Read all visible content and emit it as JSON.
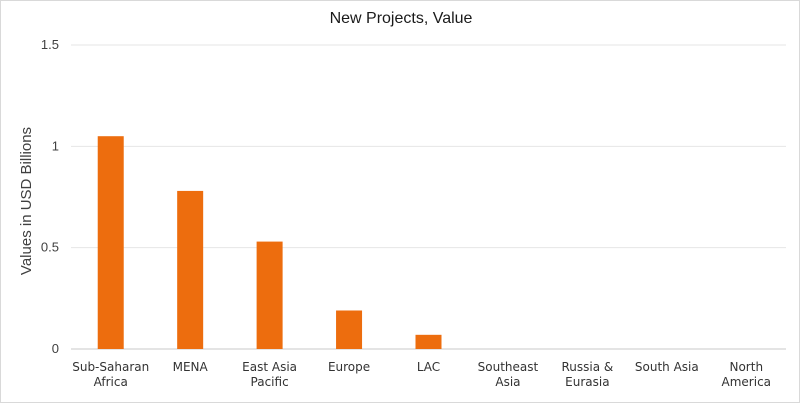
{
  "chart_data": {
    "type": "bar",
    "title": "New Projects, Value",
    "ylabel": "Values in USD Billions",
    "xlabel": "",
    "categories": [
      [
        "Sub-Saharan",
        "Africa"
      ],
      [
        "MENA"
      ],
      [
        "East Asia",
        "Pacific"
      ],
      [
        "Europe"
      ],
      [
        "LAC"
      ],
      [
        "Southeast",
        "Asia"
      ],
      [
        "Russia &",
        "Eurasia"
      ],
      [
        "South Asia"
      ],
      [
        "North",
        "America"
      ]
    ],
    "values": [
      1.05,
      0.78,
      0.53,
      0.19,
      0.07,
      0,
      0,
      0,
      0
    ],
    "ylim": [
      0,
      1.5
    ],
    "yticks": [
      0,
      0.5,
      1,
      1.5
    ],
    "ytick_labels": [
      "0",
      "0.5",
      "1",
      "1.5"
    ],
    "bar_color": "#ed6d0e",
    "grid": true,
    "legend": "none"
  }
}
